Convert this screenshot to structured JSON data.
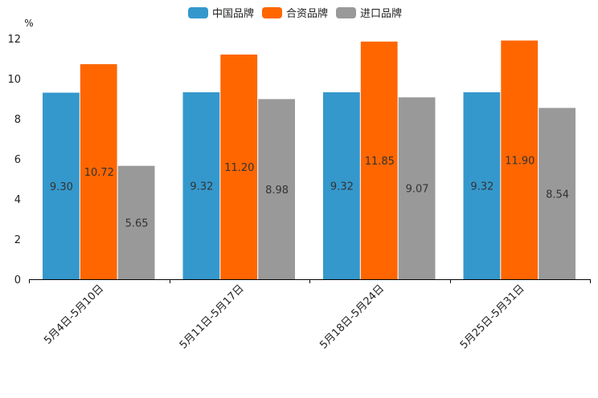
{
  "chart_data": {
    "type": "bar",
    "title": "",
    "xlabel": "",
    "ylabel": "%",
    "ylim": [
      0,
      12
    ],
    "yticks": [
      0,
      2,
      4,
      6,
      8,
      10,
      12
    ],
    "grid": false,
    "legend_position": "top-center",
    "categories": [
      "5月4日-5月10日",
      "5月11日-5月17日",
      "5月18日-5月24日",
      "5月25日-5月31日"
    ],
    "series": [
      {
        "name": "中国品牌",
        "color": "#3498cc",
        "values": [
          9.3,
          9.32,
          9.32,
          9.32
        ],
        "labels": [
          "9.30",
          "9.32",
          "9.32",
          "9.32"
        ]
      },
      {
        "name": "合资品牌",
        "color": "#ff6600",
        "values": [
          10.72,
          11.2,
          11.85,
          11.9
        ],
        "labels": [
          "10.72",
          "11.20",
          "11.85",
          "11.90"
        ]
      },
      {
        "name": "进口品牌",
        "color": "#999999",
        "values": [
          5.65,
          8.98,
          9.07,
          8.54
        ],
        "labels": [
          "5.65",
          "8.98",
          "9.07",
          "8.54"
        ]
      }
    ]
  }
}
